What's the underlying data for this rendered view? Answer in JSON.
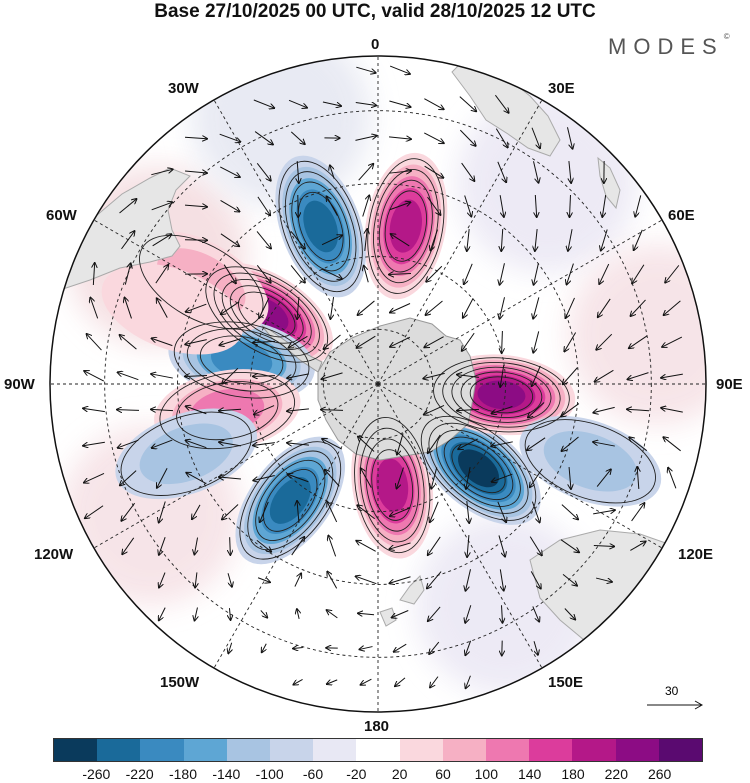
{
  "title": "Base 27/10/2025 00 UTC, valid 28/10/2025 12 UTC",
  "brand": "MODES",
  "brand_mark": "©",
  "longitude_labels": {
    "top": "0",
    "top_left": "30W",
    "top_right": "30E",
    "upper_left": "60W",
    "upper_right": "60E",
    "left": "90W",
    "right": "90E",
    "lower_left": "120W",
    "lower_right": "120E",
    "bottom_left": "150W",
    "bottom_right": "150E",
    "bottom": "180"
  },
  "reference_vector": {
    "value": "30",
    "icon": "arrow-right-icon"
  },
  "colorbar": {
    "colors": [
      "#0a3a5c",
      "#1a6a9a",
      "#3a8ac0",
      "#5ea6d4",
      "#a8c4e2",
      "#c8d4ea",
      "#e8e8f4",
      "#ffffff",
      "#fad8de",
      "#f6b0c4",
      "#ee78b0",
      "#dc3c9c",
      "#b41888",
      "#8c0c84",
      "#5a0a70"
    ],
    "ticks": [
      "-260",
      "-220",
      "-180",
      "-140",
      "-100",
      "-60",
      "-20",
      "20",
      "60",
      "100",
      "140",
      "180",
      "220",
      "260"
    ]
  },
  "anomalies": [
    {
      "sign": "positive",
      "value": 200,
      "lon": 10,
      "colat": 44
    },
    {
      "sign": "negative",
      "value": -210,
      "lon": -20,
      "colat": 46
    },
    {
      "sign": "positive",
      "value": 220,
      "lon": -58,
      "colat": 36
    },
    {
      "sign": "negative",
      "value": -140,
      "lon": -80,
      "colat": 38
    },
    {
      "sign": "positive",
      "value": 110,
      "lon": -100,
      "colat": 42
    },
    {
      "sign": "negative",
      "value": -90,
      "lon": -110,
      "colat": 56
    },
    {
      "sign": "negative",
      "value": -180,
      "lon": -143,
      "colat": 40
    },
    {
      "sign": "positive",
      "value": 200,
      "lon": 172,
      "colat": 28
    },
    {
      "sign": "negative",
      "value": -230,
      "lon": 130,
      "colat": 36
    },
    {
      "sign": "positive",
      "value": 230,
      "lon": 95,
      "colat": 34
    },
    {
      "sign": "negative",
      "value": -60,
      "lon": 110,
      "colat": 62
    },
    {
      "sign": "positive",
      "value": 60,
      "lon": -60,
      "colat": 56
    },
    {
      "sign": "positive",
      "value": 40,
      "lon": -70,
      "colat": 60
    }
  ]
}
